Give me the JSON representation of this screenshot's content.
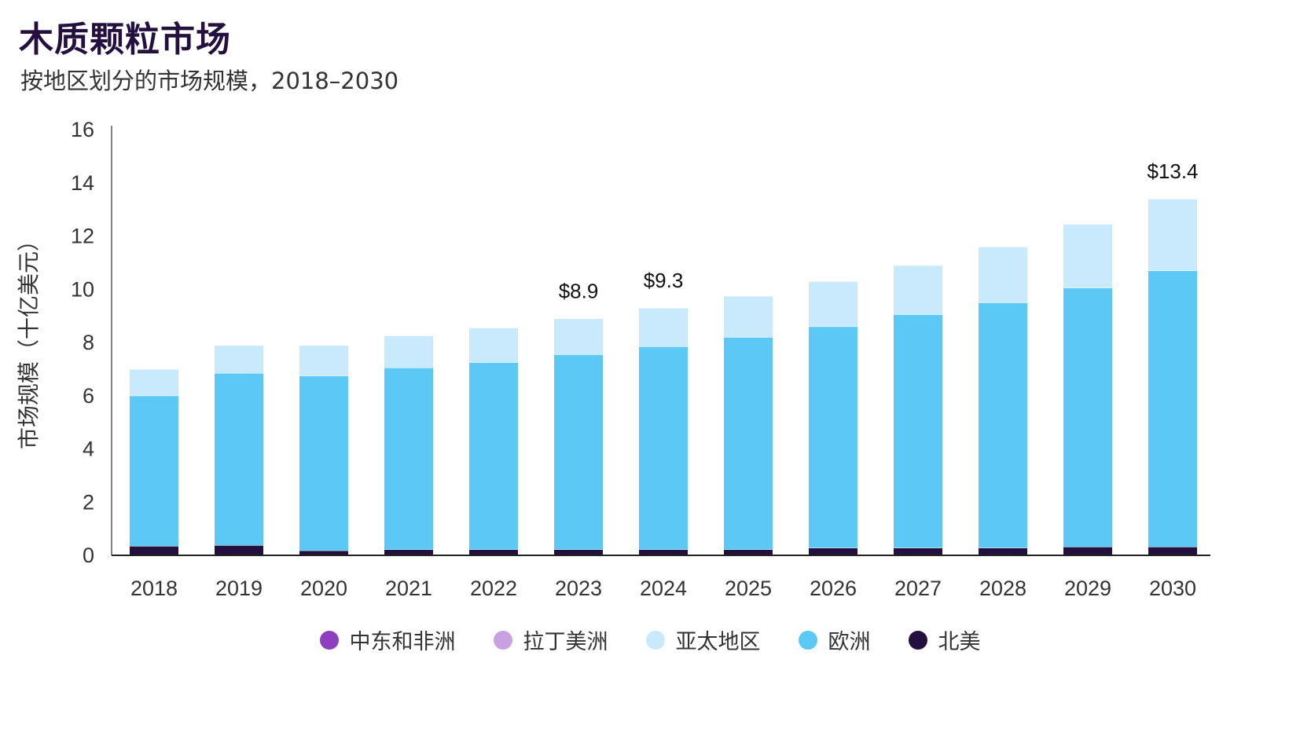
{
  "title": "木质颗粒市场",
  "subtitle": "按地区划分的市场规模，2018–2030",
  "chart_data": {
    "type": "bar",
    "stacked": true,
    "title": "木质颗粒市场",
    "subtitle": "按地区划分的市场规模，2018–2030",
    "ylabel": "市场规模（十亿美元）",
    "xlabel": "",
    "ylim": [
      0,
      16
    ],
    "yticks": [
      0,
      2,
      4,
      6,
      8,
      10,
      12,
      14,
      16
    ],
    "grid": false,
    "legend_position": "bottom",
    "categories": [
      "2018",
      "2019",
      "2020",
      "2021",
      "2022",
      "2023",
      "2024",
      "2025",
      "2026",
      "2027",
      "2028",
      "2029",
      "2030"
    ],
    "series": [
      {
        "name": "中东和非洲",
        "color": "#8e3fbf",
        "values": [
          0,
          0,
          0,
          0,
          0,
          0,
          0,
          0,
          0,
          0,
          0,
          0,
          0
        ]
      },
      {
        "name": "拉丁美洲",
        "color": "#c9a0e0",
        "values": [
          0,
          0,
          0,
          0,
          0,
          0,
          0,
          0,
          0,
          0,
          0,
          0,
          0
        ]
      },
      {
        "name": "北美",
        "color": "#23103f",
        "values": [
          0.35,
          0.38,
          0.18,
          0.22,
          0.22,
          0.22,
          0.22,
          0.22,
          0.28,
          0.28,
          0.28,
          0.32,
          0.32
        ]
      },
      {
        "name": "欧洲",
        "color": "#5bc8f5",
        "values": [
          5.65,
          6.47,
          6.57,
          6.83,
          7.03,
          7.33,
          7.63,
          7.98,
          8.32,
          8.77,
          9.22,
          9.73,
          10.38
        ]
      },
      {
        "name": "亚太地区",
        "color": "#c8eafc",
        "values": [
          1.0,
          1.05,
          1.15,
          1.2,
          1.3,
          1.35,
          1.45,
          1.55,
          1.7,
          1.85,
          2.1,
          2.4,
          2.7
        ]
      }
    ],
    "legend_order": [
      "中东和非洲",
      "拉丁美洲",
      "亚太地区",
      "欧洲",
      "北美"
    ],
    "annotations": [
      {
        "category": "2023",
        "text": "$8.9",
        "value": 8.9
      },
      {
        "category": "2024",
        "text": "$9.3",
        "value": 9.3
      },
      {
        "category": "2030",
        "text": "$13.4",
        "value": 13.4
      }
    ]
  }
}
